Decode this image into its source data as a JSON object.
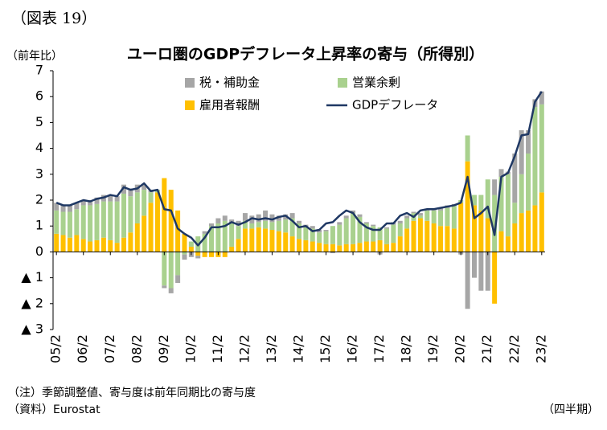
{
  "chart_data": {
    "type": "bar",
    "figure_label": "（図表 19）",
    "title": "ユーロ圏のGDPデフレータ上昇率の寄与（所得別）",
    "y_unit": "（前年比）",
    "x_unit": "（四半期）",
    "notes": [
      "（注）季節調整値、寄与度は前年同期比の寄与度",
      "（資料）Eurostat"
    ],
    "stacked": true,
    "legend": "upper-center",
    "grid": false,
    "categories": [
      "05/2",
      null,
      null,
      null,
      "06/2",
      null,
      null,
      null,
      "07/2",
      null,
      null,
      null,
      "08/2",
      null,
      null,
      null,
      "09/2",
      null,
      null,
      null,
      "10/2",
      null,
      null,
      null,
      "11/2",
      null,
      null,
      null,
      "12/2",
      null,
      null,
      null,
      "13/2",
      null,
      null,
      null,
      "14/2",
      null,
      null,
      null,
      "15/2",
      null,
      null,
      null,
      "16/2",
      null,
      null,
      null,
      "17/2",
      null,
      null,
      null,
      "18/2",
      null,
      null,
      null,
      "19/2",
      null,
      null,
      null,
      "20/2",
      null,
      null,
      null,
      "21/2",
      null,
      null,
      null,
      "22/2",
      null,
      null,
      null,
      "23/2"
    ],
    "series": [
      {
        "name": "税・補助金",
        "type": "bar",
        "color": "#a6a6a6",
        "values": [
          0.3,
          0.25,
          0.25,
          0.25,
          0.2,
          0.2,
          0.25,
          0.25,
          0.25,
          0.2,
          0.35,
          0.3,
          0.3,
          0.2,
          0.1,
          0,
          -0.1,
          -0.2,
          -0.3,
          -0.2,
          -0.2,
          -0.1,
          0.1,
          0.1,
          0.2,
          0.2,
          0.15,
          0.2,
          0.3,
          0.3,
          0.3,
          0.4,
          0.3,
          0.2,
          0.2,
          0.2,
          0.1,
          0.1,
          0.1,
          0.1,
          0.05,
          -0.05,
          0.1,
          0.1,
          0.1,
          0.1,
          0.05,
          0.05,
          -0.1,
          0.05,
          0.1,
          0.1,
          0.1,
          0.05,
          0.1,
          0.05,
          0.05,
          0.1,
          0.1,
          0.05,
          -0.1,
          -2.2,
          -1.0,
          -1.5,
          -1.5,
          0.6,
          0.3,
          0.1,
          1.9,
          1.7,
          0.9,
          0.3,
          0.5
        ]
      },
      {
        "name": "営業余剰",
        "type": "bar",
        "color": "#a9d18e",
        "values": [
          0.9,
          0.9,
          1.0,
          1.0,
          1.3,
          1.4,
          1.4,
          1.4,
          1.5,
          1.6,
          1.7,
          1.4,
          1.2,
          1.0,
          0.4,
          0.1,
          -1.3,
          -1.4,
          -0.9,
          -0.1,
          0.2,
          0.6,
          0.7,
          1.0,
          1.1,
          1.2,
          0.9,
          0.5,
          0.3,
          0.2,
          0.2,
          0.3,
          0.3,
          0.4,
          0.5,
          0.7,
          0.6,
          0.5,
          0.5,
          0.4,
          0.5,
          0.7,
          0.8,
          1.0,
          1.2,
          1.0,
          0.7,
          0.6,
          0.5,
          0.6,
          0.7,
          0.5,
          0.4,
          0.3,
          0.1,
          0.4,
          0.5,
          0.6,
          0.7,
          0.9,
          0.1,
          1.0,
          0.4,
          0.6,
          1.5,
          2.2,
          2.1,
          2.4,
          0.8,
          1.5,
          2.2,
          3.8,
          3.4
        ]
      },
      {
        "name": "雇用者報酬",
        "type": "bar",
        "color": "#ffc000",
        "values": [
          0.7,
          0.65,
          0.55,
          0.65,
          0.5,
          0.4,
          0.45,
          0.55,
          0.45,
          0.35,
          0.55,
          0.75,
          1.1,
          1.4,
          1.9,
          2.3,
          2.85,
          2.4,
          1.6,
          0.7,
          0.2,
          -0.15,
          -0.2,
          -0.2,
          -0.2,
          -0.2,
          0.2,
          0.5,
          0.9,
          0.9,
          0.95,
          0.9,
          0.85,
          0.8,
          0.75,
          0.6,
          0.5,
          0.45,
          0.4,
          0.35,
          0.3,
          0.3,
          0.25,
          0.3,
          0.3,
          0.35,
          0.4,
          0.4,
          0.45,
          0.3,
          0.35,
          0.6,
          0.9,
          1.2,
          1.3,
          1.2,
          1.1,
          1.0,
          1.0,
          0.9,
          1.9,
          3.5,
          1.8,
          1.6,
          1.3,
          -2.0,
          0.8,
          0.6,
          1.1,
          1.5,
          1.6,
          1.8,
          2.3
        ]
      },
      {
        "name": "GDPデフレータ",
        "type": "line",
        "color": "#1f3864",
        "values": [
          1.9,
          1.8,
          1.8,
          1.9,
          2.0,
          1.95,
          2.05,
          2.1,
          2.2,
          2.15,
          2.5,
          2.4,
          2.45,
          2.65,
          2.35,
          2.4,
          1.65,
          1.6,
          0.9,
          0.7,
          0.55,
          0.25,
          0.55,
          0.95,
          0.95,
          1.0,
          1.15,
          1.05,
          1.15,
          1.3,
          1.25,
          1.3,
          1.25,
          1.35,
          1.4,
          1.2,
          0.95,
          1.0,
          0.8,
          0.85,
          1.1,
          1.15,
          1.4,
          1.6,
          1.5,
          1.15,
          0.95,
          0.85,
          0.85,
          1.1,
          1.1,
          1.4,
          1.5,
          1.35,
          1.6,
          1.65,
          1.65,
          1.7,
          1.75,
          1.8,
          1.9,
          2.9,
          1.3,
          1.5,
          1.75,
          0.65,
          2.9,
          3.05,
          3.7,
          4.5,
          4.55,
          5.8,
          6.2
        ]
      }
    ],
    "ylim": [
      -3,
      7
    ],
    "yticks": [
      {
        "value": -3,
        "label": "▲ 3"
      },
      {
        "value": -2,
        "label": "▲ 2"
      },
      {
        "value": -1,
        "label": "▲ 1"
      },
      0,
      1,
      2,
      3,
      4,
      5,
      6,
      7
    ]
  }
}
